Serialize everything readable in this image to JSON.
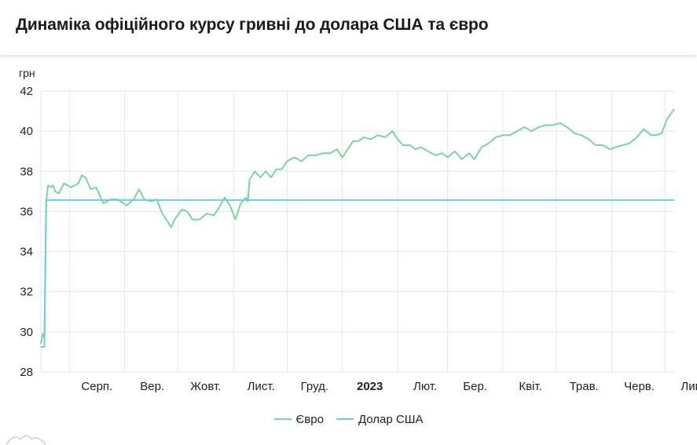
{
  "title": "Динаміка офіційного курсу гривні до долара США та євро",
  "chart_data": {
    "type": "line",
    "ylabel": "грн",
    "ylim": [
      28,
      42
    ],
    "yticks": [
      28,
      30,
      32,
      34,
      36,
      38,
      40,
      42
    ],
    "grid": true,
    "legend_position": "bottom",
    "x_ticks": [
      {
        "label": "Серп.",
        "bold": false,
        "x": "2022-08-01"
      },
      {
        "label": "Вер.",
        "bold": false,
        "x": "2022-09-01"
      },
      {
        "label": "Жовт.",
        "bold": false,
        "x": "2022-10-01"
      },
      {
        "label": "Лист.",
        "bold": false,
        "x": "2022-11-01"
      },
      {
        "label": "Груд.",
        "bold": false,
        "x": "2022-12-01"
      },
      {
        "label": "2023",
        "bold": true,
        "x": "2023-01-01"
      },
      {
        "label": "Лют.",
        "bold": false,
        "x": "2023-02-01"
      },
      {
        "label": "Бер.",
        "bold": false,
        "x": "2023-03-01"
      },
      {
        "label": "Квіт.",
        "bold": false,
        "x": "2023-04-01"
      },
      {
        "label": "Трав.",
        "bold": false,
        "x": "2023-05-01"
      },
      {
        "label": "Черв.",
        "bold": false,
        "x": "2023-06-01"
      },
      {
        "label": "Лип.",
        "bold": false,
        "x": "2023-07-01"
      }
    ],
    "xlim": [
      "2022-07-16",
      "2023-07-06"
    ],
    "series": [
      {
        "name": "Євро",
        "color": "#7dd3a2",
        "points": [
          [
            "2022-07-16",
            29.4
          ],
          [
            "2022-07-17",
            29.9
          ],
          [
            "2022-07-18",
            29.7
          ],
          [
            "2022-07-19",
            36.5
          ],
          [
            "2022-07-20",
            37.3
          ],
          [
            "2022-07-22",
            37.2
          ],
          [
            "2022-07-23",
            37.3
          ],
          [
            "2022-07-24",
            37.0
          ],
          [
            "2022-07-26",
            36.9
          ],
          [
            "2022-07-29",
            37.4
          ],
          [
            "2022-08-02",
            37.2
          ],
          [
            "2022-08-06",
            37.4
          ],
          [
            "2022-08-08",
            37.8
          ],
          [
            "2022-08-10",
            37.7
          ],
          [
            "2022-08-13",
            37.1
          ],
          [
            "2022-08-16",
            37.2
          ],
          [
            "2022-08-20",
            36.4
          ],
          [
            "2022-08-24",
            36.6
          ],
          [
            "2022-08-28",
            36.6
          ],
          [
            "2022-09-02",
            36.3
          ],
          [
            "2022-09-06",
            36.6
          ],
          [
            "2022-09-09",
            37.1
          ],
          [
            "2022-09-12",
            36.6
          ],
          [
            "2022-09-16",
            36.5
          ],
          [
            "2022-09-19",
            36.6
          ],
          [
            "2022-09-22",
            35.9
          ],
          [
            "2022-09-25",
            35.5
          ],
          [
            "2022-09-27",
            35.2
          ],
          [
            "2022-09-29",
            35.6
          ],
          [
            "2022-10-03",
            36.1
          ],
          [
            "2022-10-06",
            36.0
          ],
          [
            "2022-10-09",
            35.6
          ],
          [
            "2022-10-13",
            35.6
          ],
          [
            "2022-10-17",
            35.9
          ],
          [
            "2022-10-21",
            35.8
          ],
          [
            "2022-10-24",
            36.2
          ],
          [
            "2022-10-27",
            36.7
          ],
          [
            "2022-10-30",
            36.3
          ],
          [
            "2022-11-02",
            35.6
          ],
          [
            "2022-11-05",
            36.4
          ],
          [
            "2022-11-08",
            36.7
          ],
          [
            "2022-11-09",
            36.5
          ],
          [
            "2022-11-10",
            37.6
          ],
          [
            "2022-11-13",
            38.0
          ],
          [
            "2022-11-16",
            37.7
          ],
          [
            "2022-11-19",
            38.0
          ],
          [
            "2022-11-22",
            37.7
          ],
          [
            "2022-11-25",
            38.1
          ],
          [
            "2022-11-28",
            38.1
          ],
          [
            "2022-12-01",
            38.5
          ],
          [
            "2022-12-05",
            38.7
          ],
          [
            "2022-12-09",
            38.5
          ],
          [
            "2022-12-13",
            38.8
          ],
          [
            "2022-12-17",
            38.8
          ],
          [
            "2022-12-21",
            38.9
          ],
          [
            "2022-12-25",
            38.9
          ],
          [
            "2022-12-29",
            39.1
          ],
          [
            "2023-01-01",
            38.7
          ],
          [
            "2023-01-04",
            39.1
          ],
          [
            "2023-01-07",
            39.5
          ],
          [
            "2023-01-10",
            39.5
          ],
          [
            "2023-01-13",
            39.7
          ],
          [
            "2023-01-17",
            39.6
          ],
          [
            "2023-01-21",
            39.8
          ],
          [
            "2023-01-25",
            39.7
          ],
          [
            "2023-01-29",
            40.0
          ],
          [
            "2023-02-01",
            39.6
          ],
          [
            "2023-02-04",
            39.3
          ],
          [
            "2023-02-08",
            39.3
          ],
          [
            "2023-02-11",
            39.1
          ],
          [
            "2023-02-14",
            39.2
          ],
          [
            "2023-02-18",
            39.0
          ],
          [
            "2023-02-22",
            38.8
          ],
          [
            "2023-02-26",
            38.9
          ],
          [
            "2023-03-01",
            38.7
          ],
          [
            "2023-03-05",
            39.0
          ],
          [
            "2023-03-09",
            38.6
          ],
          [
            "2023-03-13",
            38.9
          ],
          [
            "2023-03-16",
            38.6
          ],
          [
            "2023-03-20",
            39.2
          ],
          [
            "2023-03-24",
            39.4
          ],
          [
            "2023-03-28",
            39.7
          ],
          [
            "2023-04-01",
            39.8
          ],
          [
            "2023-04-05",
            39.8
          ],
          [
            "2023-04-09",
            40.0
          ],
          [
            "2023-04-13",
            40.2
          ],
          [
            "2023-04-17",
            40.0
          ],
          [
            "2023-04-21",
            40.2
          ],
          [
            "2023-04-25",
            40.3
          ],
          [
            "2023-04-29",
            40.3
          ],
          [
            "2023-05-03",
            40.4
          ],
          [
            "2023-05-07",
            40.2
          ],
          [
            "2023-05-11",
            39.9
          ],
          [
            "2023-05-15",
            39.8
          ],
          [
            "2023-05-19",
            39.6
          ],
          [
            "2023-05-23",
            39.3
          ],
          [
            "2023-05-27",
            39.3
          ],
          [
            "2023-05-31",
            39.1
          ],
          [
            "2023-06-03",
            39.2
          ],
          [
            "2023-06-07",
            39.3
          ],
          [
            "2023-06-11",
            39.4
          ],
          [
            "2023-06-15",
            39.7
          ],
          [
            "2023-06-19",
            40.1
          ],
          [
            "2023-06-23",
            39.8
          ],
          [
            "2023-06-26",
            39.8
          ],
          [
            "2023-06-29",
            39.9
          ],
          [
            "2023-07-02",
            40.6
          ],
          [
            "2023-07-06",
            41.1
          ]
        ]
      },
      {
        "name": "Долар США",
        "color": "#6ed1c3",
        "points": [
          [
            "2022-07-16",
            29.25
          ],
          [
            "2022-07-17",
            29.25
          ],
          [
            "2022-07-18",
            29.25
          ],
          [
            "2022-07-19",
            36.57
          ],
          [
            "2023-07-06",
            36.57
          ]
        ]
      }
    ]
  }
}
